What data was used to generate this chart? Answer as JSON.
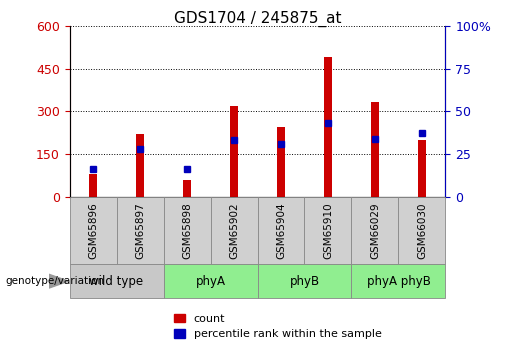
{
  "title": "GDS1704 / 245875_at",
  "samples": [
    "GSM65896",
    "GSM65897",
    "GSM65898",
    "GSM65902",
    "GSM65904",
    "GSM65910",
    "GSM66029",
    "GSM66030"
  ],
  "counts": [
    78,
    220,
    58,
    318,
    245,
    490,
    332,
    200
  ],
  "percentile_ranks": [
    16,
    28,
    16,
    33,
    31,
    43,
    34,
    37
  ],
  "bar_color": "#cc0000",
  "blue_color": "#0000bb",
  "left_ylim": [
    0,
    600
  ],
  "right_ylim": [
    0,
    100
  ],
  "left_yticks": [
    0,
    150,
    300,
    450,
    600
  ],
  "right_yticks": [
    0,
    25,
    50,
    75,
    100
  ],
  "left_tick_color": "#cc0000",
  "right_tick_color": "#0000bb",
  "grid_color": "#000000",
  "bg_color": "#ffffff",
  "bar_width": 0.18,
  "title_fontsize": 11,
  "legend_labels": [
    "count",
    "percentile rank within the sample"
  ],
  "legend_colors": [
    "#cc0000",
    "#0000bb"
  ],
  "genotype_label": "genotype/variation",
  "group_defs": [
    {
      "label": "wild type",
      "start": 0,
      "end": 1,
      "color": "#c8c8c8"
    },
    {
      "label": "phyA",
      "start": 2,
      "end": 3,
      "color": "#90ee90"
    },
    {
      "label": "phyB",
      "start": 4,
      "end": 5,
      "color": "#90ee90"
    },
    {
      "label": "phyA phyB",
      "start": 6,
      "end": 7,
      "color": "#90ee90"
    }
  ],
  "sample_box_color": "#d0d0d0",
  "sample_box_edge": "#888888"
}
